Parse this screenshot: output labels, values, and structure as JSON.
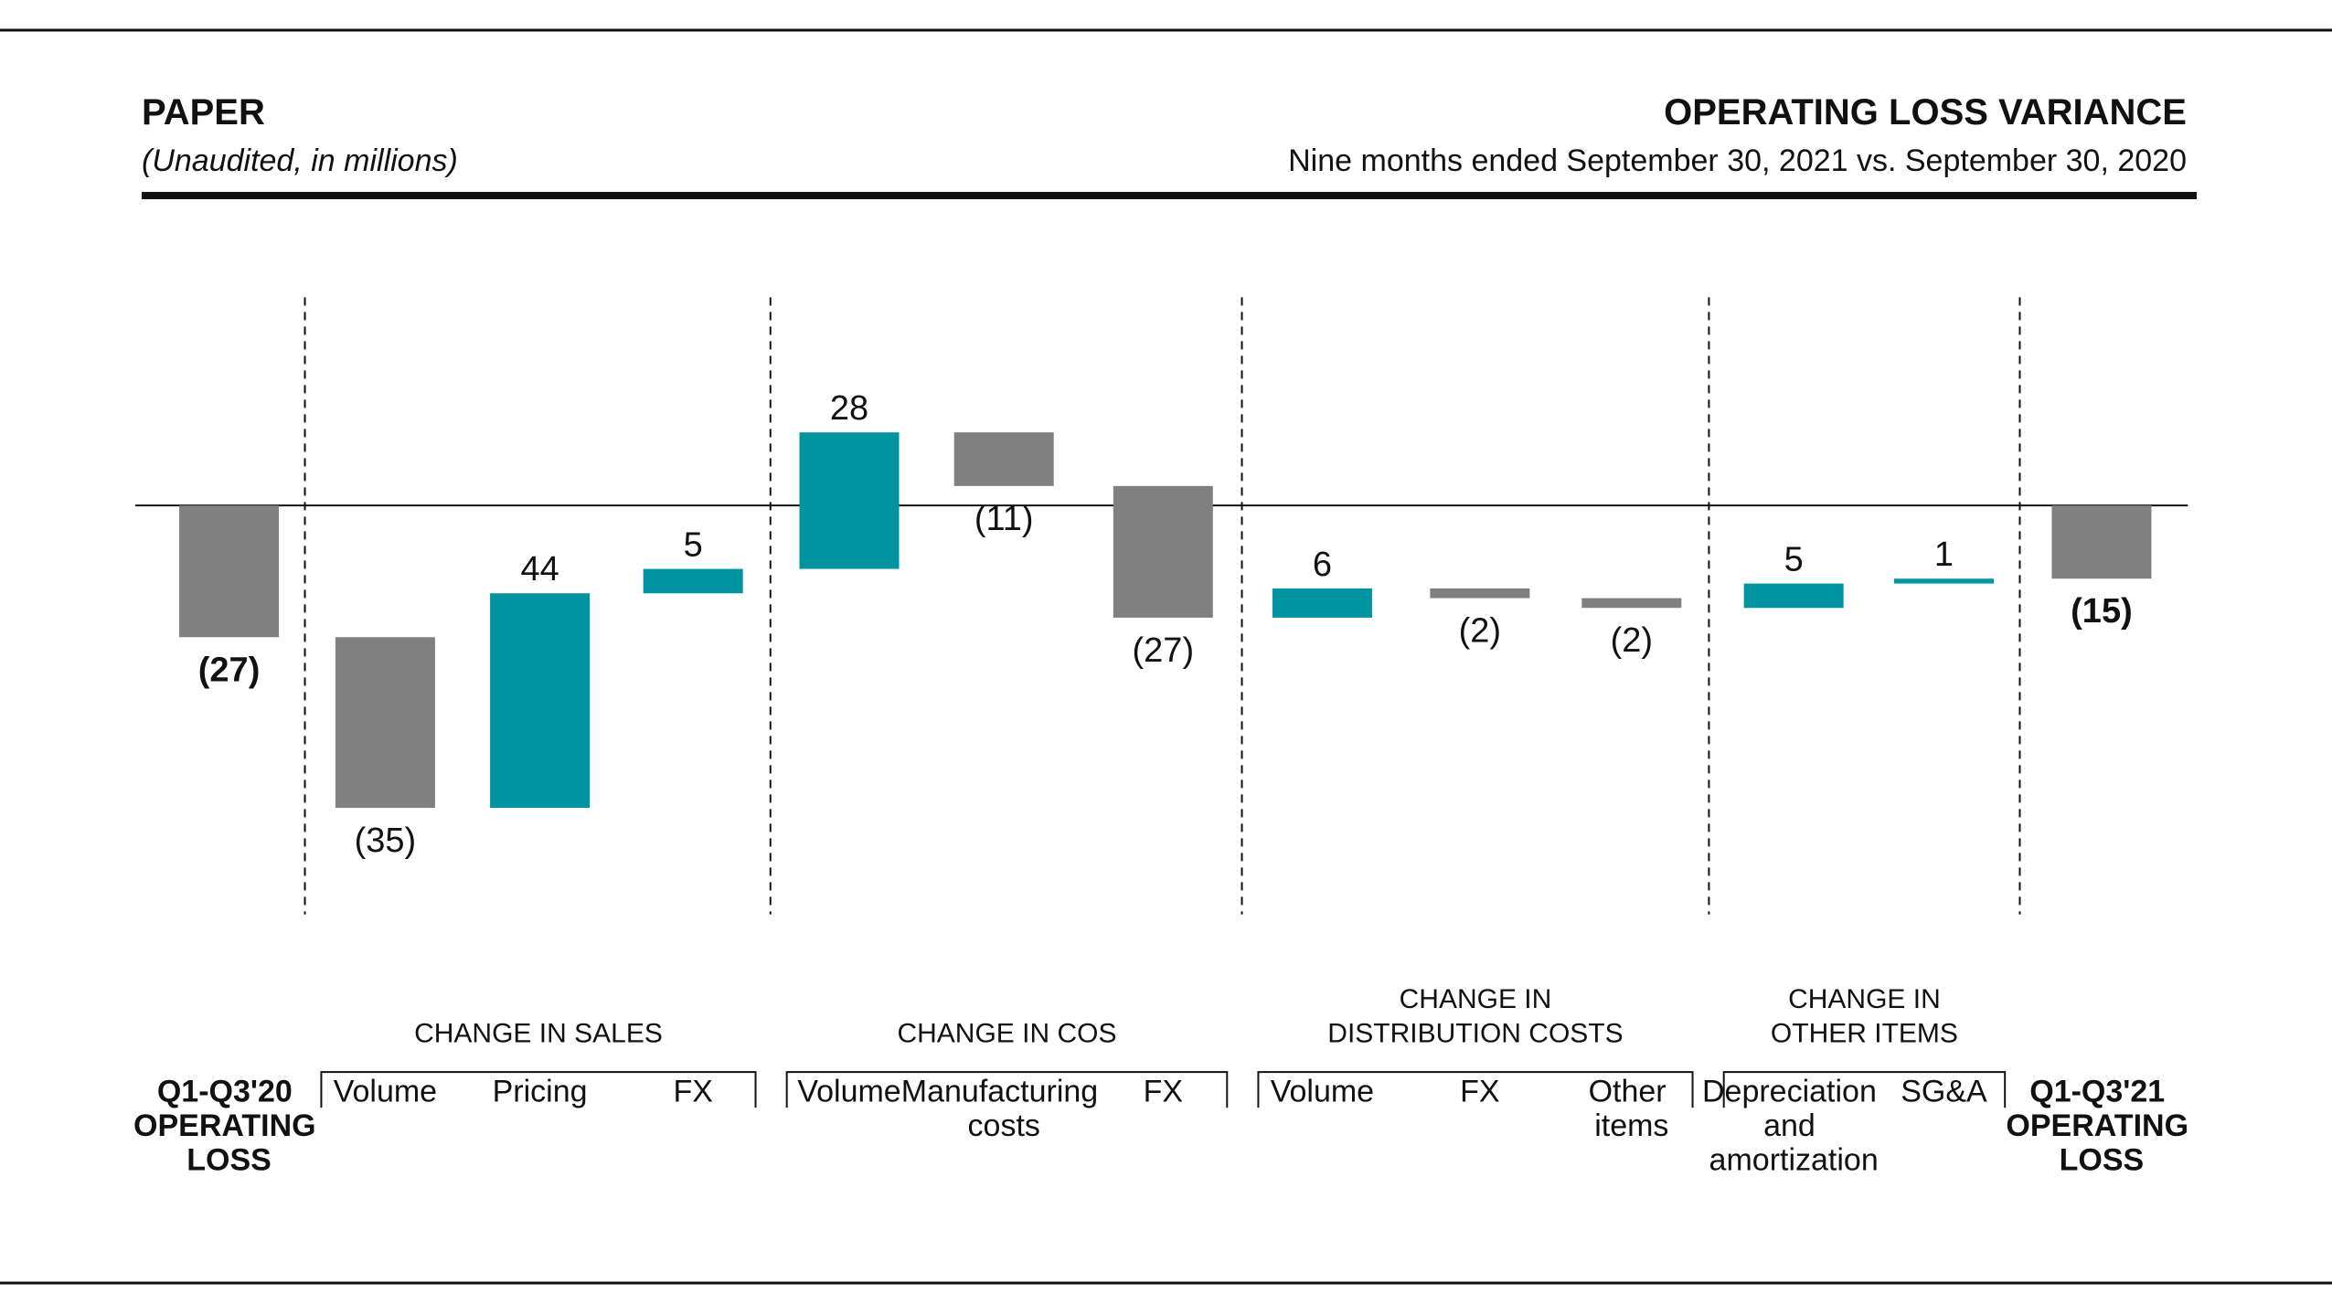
{
  "chart_data": {
    "type": "waterfall",
    "section": "PAPER",
    "note": "(Unaudited, in millions)",
    "title": "OPERATING LOSS VARIANCE",
    "subtitle": "Nine months ended September 30, 2021 vs. September 30, 2020",
    "increase_color": "#0094a0",
    "decrease_color": "#808080",
    "total_color": "#808080",
    "start": {
      "label": "Q1-Q3'20 OPERATING LOSS",
      "value": -27,
      "value_label": "(27)"
    },
    "groups": [
      {
        "label": [
          "CHANGE IN SALES"
        ],
        "categories": [
          "Volume",
          "Pricing",
          "FX"
        ],
        "values": [
          -35,
          44,
          5
        ],
        "value_labels": [
          "(35)",
          "44",
          "5"
        ]
      },
      {
        "label": [
          "CHANGE IN COS"
        ],
        "categories": [
          "Volume",
          "Manufacturing costs",
          "FX"
        ],
        "values": [
          28,
          -11,
          -27
        ],
        "value_labels": [
          "28",
          "(11)",
          "(27)"
        ]
      },
      {
        "label": [
          "CHANGE IN",
          "DISTRIBUTION COSTS"
        ],
        "categories": [
          "Volume",
          "FX",
          "Other items"
        ],
        "values": [
          6,
          -2,
          -2
        ],
        "value_labels": [
          "6",
          "(2)",
          "(2)"
        ]
      },
      {
        "label": [
          "CHANGE IN",
          "OTHER ITEMS"
        ],
        "categories": [
          "Depreciation and amortization",
          "SG&A"
        ],
        "values": [
          5,
          1
        ],
        "value_labels": [
          "5",
          "1"
        ]
      }
    ],
    "end": {
      "label": "Q1-Q3'21 OPERATING LOSS",
      "value": -15,
      "value_label": "(15)"
    }
  }
}
